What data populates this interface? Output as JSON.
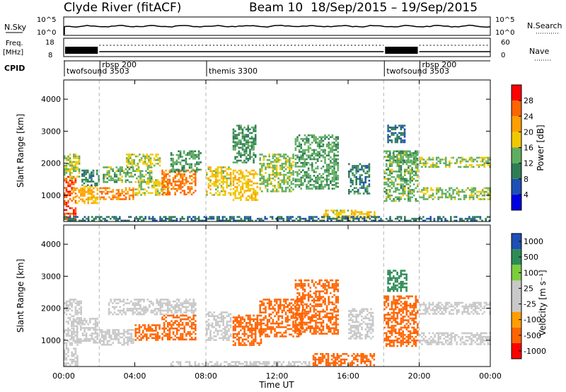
{
  "header": {
    "title": "Clyde River (fitACF)",
    "subtitle": "Beam 10  18/Sep/2015 – 19/Sep/2015"
  },
  "top_panels": {
    "nsky": {
      "label": "N.Sky",
      "right_label": "N.Search",
      "ticks_left": [
        "10^5",
        "10^0"
      ],
      "ticks_right": [
        "10^5",
        "10^0"
      ]
    },
    "freq": {
      "label_line1": "Freq.",
      "label_line2": "[MHz]",
      "right_label": "Nave",
      "ticks_left": [
        "18",
        "8"
      ],
      "ticks_right": [
        "60",
        "0"
      ]
    },
    "cpid": {
      "label": "CPID",
      "segments": [
        {
          "start": 0.0,
          "end": 2.0,
          "name": "twofsound 3503"
        },
        {
          "start": 2.0,
          "end": 8.0,
          "name": "rbsp 200"
        },
        {
          "start": 8.0,
          "end": 18.0,
          "name": "themis 3300"
        },
        {
          "start": 18.0,
          "end": 20.0,
          "name": "twofsound 3503"
        },
        {
          "start": 20.0,
          "end": 24.0,
          "name": "rbsp 200"
        }
      ]
    }
  },
  "x_axis": {
    "label": "Time UT",
    "ticks": [
      {
        "v": 0,
        "label": "00:00"
      },
      {
        "v": 4,
        "label": "04:00"
      },
      {
        "v": 8,
        "label": "08:00"
      },
      {
        "v": 12,
        "label": "12:00"
      },
      {
        "v": 16,
        "label": "16:00"
      },
      {
        "v": 20,
        "label": "20:00"
      },
      {
        "v": 24,
        "label": "00:00"
      }
    ]
  },
  "colors": {
    "power": [
      "#0000e0",
      "#1e4fb4",
      "#2e7d55",
      "#5fae5f",
      "#f0c800",
      "#ff9e00",
      "#ff6400",
      "#ff0000"
    ],
    "velocity": [
      "#ff0000",
      "#ff6400",
      "#ff9e00",
      "#c8c8c8",
      "#c8c8c8",
      "#7ccd3c",
      "#2e8b57",
      "#1e4fb4"
    ]
  },
  "chart_data": [
    {
      "type": "heatmap",
      "name": "power",
      "xlabel": "",
      "ylabel": "Slant Range [km]",
      "xlim": [
        0,
        24
      ],
      "ylim": [
        180,
        4600
      ],
      "yticks": [
        1000,
        2000,
        3000,
        4000
      ],
      "colorbar": {
        "label": "Power [dB]",
        "range": [
          0,
          32
        ],
        "ticks": [
          4,
          8,
          12,
          16,
          20,
          24,
          28
        ]
      },
      "regions": [
        {
          "t0": 0.0,
          "t1": 0.7,
          "r0": 200,
          "r1": 1600,
          "v": 27
        },
        {
          "t0": 0.0,
          "t1": 0.9,
          "r0": 1500,
          "r1": 2300,
          "v": 16
        },
        {
          "t0": 0.5,
          "t1": 2.0,
          "r0": 700,
          "r1": 1300,
          "v": 21
        },
        {
          "t0": 1.0,
          "t1": 2.0,
          "r0": 1300,
          "r1": 1800,
          "v": 10
        },
        {
          "t0": 2.0,
          "t1": 4.0,
          "r0": 850,
          "r1": 1250,
          "v": 24
        },
        {
          "t0": 2.2,
          "t1": 5.0,
          "r0": 1400,
          "r1": 1900,
          "v": 14
        },
        {
          "t0": 3.5,
          "t1": 5.5,
          "r0": 1900,
          "r1": 2300,
          "v": 17
        },
        {
          "t0": 4.0,
          "t1": 6.0,
          "r0": 1000,
          "r1": 1500,
          "v": 17
        },
        {
          "t0": 5.5,
          "t1": 7.5,
          "r0": 1000,
          "r1": 1800,
          "v": 25
        },
        {
          "t0": 6.0,
          "t1": 7.8,
          "r0": 1700,
          "r1": 2400,
          "v": 12
        },
        {
          "t0": 8.0,
          "t1": 9.5,
          "r0": 1000,
          "r1": 1900,
          "v": 18
        },
        {
          "t0": 9.5,
          "t1": 11.0,
          "r0": 800,
          "r1": 1800,
          "v": 19
        },
        {
          "t0": 9.5,
          "t1": 10.8,
          "r0": 2000,
          "r1": 3200,
          "v": 11
        },
        {
          "t0": 11.0,
          "t1": 13.0,
          "r0": 1100,
          "r1": 2300,
          "v": 15
        },
        {
          "t0": 13.0,
          "t1": 15.5,
          "r0": 1200,
          "r1": 2900,
          "v": 13
        },
        {
          "t0": 14.5,
          "t1": 16.5,
          "r0": 250,
          "r1": 550,
          "v": 18
        },
        {
          "t0": 16.0,
          "t1": 17.2,
          "r0": 1000,
          "r1": 2000,
          "v": 10
        },
        {
          "t0": 16.3,
          "t1": 17.8,
          "r0": 250,
          "r1": 500,
          "v": 19
        },
        {
          "t0": 18.0,
          "t1": 20.0,
          "r0": 800,
          "r1": 2400,
          "v": 14
        },
        {
          "t0": 18.2,
          "t1": 19.2,
          "r0": 2600,
          "r1": 3200,
          "v": 9
        },
        {
          "t0": 18.5,
          "t1": 20.0,
          "r0": 2000,
          "r1": 2400,
          "v": 13
        },
        {
          "t0": 20.0,
          "t1": 24.0,
          "r0": 1850,
          "r1": 2200,
          "v": 15
        },
        {
          "t0": 20.0,
          "t1": 24.0,
          "r0": 850,
          "r1": 1250,
          "v": 15
        },
        {
          "t0": 0.0,
          "t1": 24.0,
          "r0": 200,
          "r1": 350,
          "v": 9
        }
      ]
    },
    {
      "type": "heatmap",
      "name": "velocity",
      "xlabel": "Time UT",
      "ylabel": "Slant Range [km]",
      "xlim": [
        0,
        24
      ],
      "ylim": [
        180,
        4600
      ],
      "yticks": [
        1000,
        2000,
        3000,
        4000
      ],
      "colorbar": {
        "label": "Velocity [m s⁻¹]",
        "ticks": [
          "-1000",
          "-500",
          "-100",
          "-25",
          "25",
          "100",
          "500",
          "1000"
        ]
      },
      "regions": [
        {
          "t0": 0.0,
          "t1": 0.8,
          "r0": 200,
          "r1": 1400,
          "v": 0
        },
        {
          "t0": 0.0,
          "t1": 1.0,
          "r0": 1500,
          "r1": 2300,
          "v": 0
        },
        {
          "t0": 0.4,
          "t1": 2.0,
          "r0": 900,
          "r1": 1700,
          "v": 50
        },
        {
          "t0": 2.0,
          "t1": 4.0,
          "r0": 850,
          "r1": 1350,
          "v": 50
        },
        {
          "t0": 2.5,
          "t1": 7.5,
          "r0": 1800,
          "r1": 2300,
          "v": 0
        },
        {
          "t0": 4.0,
          "t1": 5.5,
          "r0": 1000,
          "r1": 1500,
          "v": -200
        },
        {
          "t0": 5.5,
          "t1": 7.5,
          "r0": 1000,
          "r1": 1800,
          "v": -200
        },
        {
          "t0": 8.0,
          "t1": 9.5,
          "r0": 1000,
          "r1": 1900,
          "v": 50
        },
        {
          "t0": 9.5,
          "t1": 11.2,
          "r0": 800,
          "r1": 1800,
          "v": -200
        },
        {
          "t0": 11.0,
          "t1": 13.5,
          "r0": 1100,
          "r1": 2300,
          "v": -200
        },
        {
          "t0": 13.0,
          "t1": 15.5,
          "r0": 1200,
          "r1": 2900,
          "v": -200
        },
        {
          "t0": 14.0,
          "t1": 17.5,
          "r0": 200,
          "r1": 600,
          "v": -200
        },
        {
          "t0": 16.0,
          "t1": 17.5,
          "r0": 1000,
          "r1": 2000,
          "v": 0
        },
        {
          "t0": 18.0,
          "t1": 20.0,
          "r0": 800,
          "r1": 2400,
          "v": -200
        },
        {
          "t0": 18.2,
          "t1": 19.3,
          "r0": 2500,
          "r1": 3200,
          "v": 600
        },
        {
          "t0": 20.0,
          "t1": 24.0,
          "r0": 1800,
          "r1": 2200,
          "v": 0
        },
        {
          "t0": 20.0,
          "t1": 24.0,
          "r0": 850,
          "r1": 1250,
          "v": 50
        },
        {
          "t0": 6.0,
          "t1": 14.0,
          "r0": 200,
          "r1": 350,
          "v": 50
        }
      ]
    }
  ]
}
